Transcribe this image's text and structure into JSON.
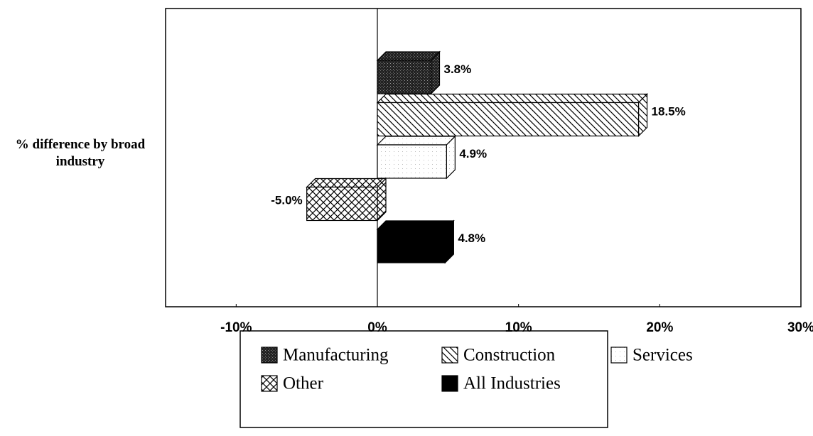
{
  "chart_data": {
    "type": "bar",
    "orientation": "horizontal",
    "categories": [
      "% difference by broad industry"
    ],
    "series": [
      {
        "name": "Manufacturing",
        "color": "#333333",
        "pattern": "stipple",
        "values": [
          3.8
        ],
        "value_labels": [
          "3.8%"
        ]
      },
      {
        "name": "Construction",
        "color": "#000000",
        "pattern": "diagonal",
        "values": [
          18.5
        ],
        "value_labels": [
          "18.5%"
        ]
      },
      {
        "name": "Services",
        "color": "#dddddd",
        "pattern": "dots",
        "values": [
          4.9
        ],
        "value_labels": [
          "4.9%"
        ]
      },
      {
        "name": "Other",
        "color": "#000000",
        "pattern": "cross",
        "values": [
          -5.0
        ],
        "value_labels": [
          "-5.0%"
        ]
      },
      {
        "name": "All Industries",
        "color": "#000000",
        "pattern": "solid",
        "values": [
          4.8
        ],
        "value_labels": [
          "4.8%"
        ]
      }
    ],
    "xlim": [
      -15,
      30
    ],
    "xticks": [
      {
        "value": -10,
        "label": "-10%"
      },
      {
        "value": 0,
        "label": "0%"
      },
      {
        "value": 10,
        "label": "10%"
      },
      {
        "value": 20,
        "label": "20%"
      },
      {
        "value": 30,
        "label": "30%"
      }
    ],
    "legend": "bottom"
  }
}
